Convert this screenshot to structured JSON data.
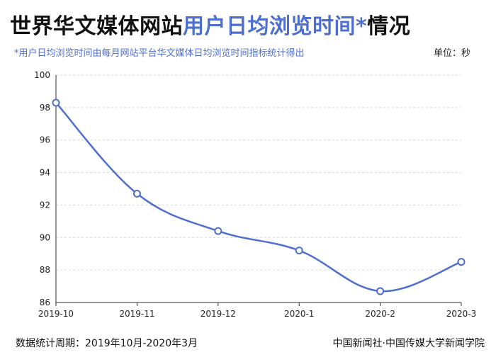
{
  "header": {
    "title_part1": "世界华文媒体网站",
    "title_part2": "用户日均浏览时间*",
    "title_part3": "情况",
    "note": "*用户日均浏览时间由每月网站平台华文媒体日均浏览时间指标统计得出",
    "unit": "单位：秒"
  },
  "footer": {
    "period": "数据统计周期：2019年10月-2020年3月",
    "source": "中国新闻社·中国传媒大学新闻学院"
  },
  "colors": {
    "accent": "#4f6fce",
    "line": "#4f6fce"
  },
  "chart_data": {
    "type": "line",
    "categories": [
      "2019-10",
      "2019-11",
      "2019-12",
      "2020-1",
      "2020-2",
      "2020-3"
    ],
    "series": [
      {
        "values": [
          98.3,
          92.7,
          90.4,
          89.2,
          86.7,
          88.5
        ]
      }
    ],
    "ylim": [
      86,
      100
    ],
    "yticks": [
      86,
      88,
      90,
      92,
      94,
      96,
      98,
      100
    ],
    "grid": true,
    "smooth": true
  }
}
